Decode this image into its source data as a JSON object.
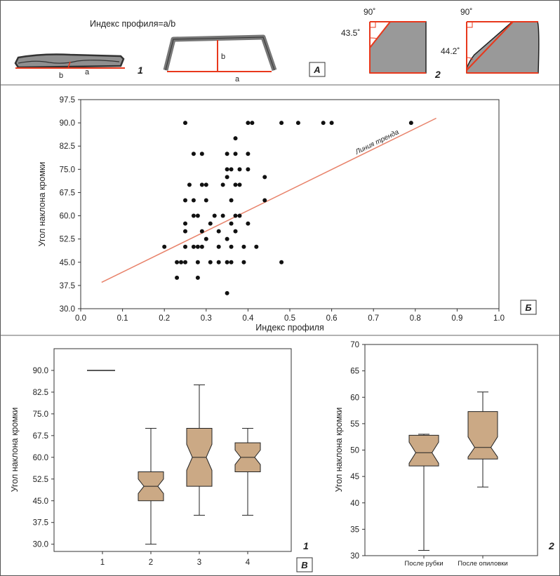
{
  "panel_labels": {
    "A": "А",
    "B": "Б",
    "V": "В"
  },
  "panel_a": {
    "formula": "Индекс профиля=a/b",
    "label_a": "a",
    "label_b": "b",
    "num_1": "1",
    "num_2": "2",
    "angle_90": "90˚",
    "angle_1": "43.5˚",
    "angle_2": "44.2˚"
  },
  "chart_data": [
    {
      "type": "scatter",
      "xlabel": "Индекс профиля",
      "ylabel": "Угол наклона кромки",
      "xlim": [
        0.0,
        1.0
      ],
      "ylim": [
        30.0,
        97.5
      ],
      "xticks": [
        "0.0",
        "0.1",
        "0.2",
        "0.3",
        "0.4",
        "0.5",
        "0.6",
        "0.7",
        "0.8",
        "0.9",
        "1.0"
      ],
      "yticks": [
        "30.0",
        "37.5",
        "45.0",
        "52.5",
        "60.0",
        "67.5",
        "75.0",
        "82.5",
        "90.0",
        "97.5"
      ],
      "points": [
        [
          0.25,
          90
        ],
        [
          0.4,
          90
        ],
        [
          0.41,
          90
        ],
        [
          0.48,
          90
        ],
        [
          0.52,
          90
        ],
        [
          0.58,
          90
        ],
        [
          0.6,
          90
        ],
        [
          0.79,
          90
        ],
        [
          0.37,
          85
        ],
        [
          0.27,
          80
        ],
        [
          0.29,
          80
        ],
        [
          0.35,
          80
        ],
        [
          0.37,
          80
        ],
        [
          0.4,
          80
        ],
        [
          0.35,
          75
        ],
        [
          0.36,
          75
        ],
        [
          0.38,
          75
        ],
        [
          0.4,
          75
        ],
        [
          0.35,
          72.5
        ],
        [
          0.44,
          72.5
        ],
        [
          0.26,
          70
        ],
        [
          0.29,
          70
        ],
        [
          0.3,
          70
        ],
        [
          0.34,
          70
        ],
        [
          0.37,
          70
        ],
        [
          0.38,
          70
        ],
        [
          0.25,
          65
        ],
        [
          0.27,
          65
        ],
        [
          0.3,
          65
        ],
        [
          0.36,
          65
        ],
        [
          0.44,
          65
        ],
        [
          0.27,
          60
        ],
        [
          0.28,
          60
        ],
        [
          0.32,
          60
        ],
        [
          0.34,
          60
        ],
        [
          0.37,
          60
        ],
        [
          0.38,
          60
        ],
        [
          0.25,
          57.5
        ],
        [
          0.31,
          57.5
        ],
        [
          0.36,
          57.5
        ],
        [
          0.4,
          57.5
        ],
        [
          0.25,
          55
        ],
        [
          0.29,
          55
        ],
        [
          0.33,
          55
        ],
        [
          0.37,
          55
        ],
        [
          0.3,
          52.5
        ],
        [
          0.35,
          52.5
        ],
        [
          0.2,
          50
        ],
        [
          0.25,
          50
        ],
        [
          0.27,
          50
        ],
        [
          0.28,
          50
        ],
        [
          0.29,
          50
        ],
        [
          0.33,
          50
        ],
        [
          0.36,
          50
        ],
        [
          0.39,
          50
        ],
        [
          0.42,
          50
        ],
        [
          0.23,
          45
        ],
        [
          0.24,
          45
        ],
        [
          0.25,
          45
        ],
        [
          0.28,
          45
        ],
        [
          0.31,
          45
        ],
        [
          0.33,
          45
        ],
        [
          0.35,
          45
        ],
        [
          0.36,
          45
        ],
        [
          0.39,
          45
        ],
        [
          0.48,
          45
        ],
        [
          0.23,
          40
        ],
        [
          0.28,
          40
        ],
        [
          0.35,
          35
        ]
      ],
      "trendline": {
        "label": "Линия тренда",
        "x": [
          0.05,
          0.85
        ],
        "y": [
          38.5,
          91.5
        ],
        "color": "#e8826a"
      }
    },
    {
      "type": "box",
      "ylabel": "Угол наклона кромки",
      "ylim": [
        27.5,
        97.5
      ],
      "yticks": [
        "30.0",
        "37.5",
        "45.0",
        "52.5",
        "60.0",
        "67.5",
        "75.0",
        "82.5",
        "90.0"
      ],
      "categories": [
        "1",
        "2",
        "3",
        "4"
      ],
      "boxes": [
        {
          "min": 90,
          "q1": 90,
          "median": 90,
          "q3": 90,
          "max": 90,
          "notch_lo": 90,
          "notch_hi": 90
        },
        {
          "min": 30,
          "q1": 45,
          "median": 50,
          "q3": 55,
          "max": 70,
          "notch_lo": 47.5,
          "notch_hi": 52.5
        },
        {
          "min": 40,
          "q1": 50,
          "median": 60,
          "q3": 70,
          "max": 85,
          "notch_lo": 55.5,
          "notch_hi": 64.5
        },
        {
          "min": 40,
          "q1": 55,
          "median": 60,
          "q3": 65,
          "max": 70,
          "notch_lo": 57.5,
          "notch_hi": 62.5
        }
      ],
      "fill": "#cba985",
      "panel_number": "1"
    },
    {
      "type": "box",
      "ylabel": "Угол наклона кромки",
      "ylim": [
        30,
        70
      ],
      "yticks": [
        "30",
        "35",
        "40",
        "45",
        "50",
        "55",
        "60",
        "65",
        "70"
      ],
      "categories": [
        "После рубки",
        "После опиловки"
      ],
      "boxes": [
        {
          "min": 31,
          "q1": 47,
          "median": 49.5,
          "q3": 52.8,
          "max": 53,
          "notch_lo": 47.5,
          "notch_hi": 51.5
        },
        {
          "min": 43,
          "q1": 48.3,
          "median": 50.5,
          "q3": 57.3,
          "max": 61,
          "notch_lo": 48.7,
          "notch_hi": 52.5
        }
      ],
      "fill": "#cba985",
      "panel_number": "2"
    }
  ]
}
